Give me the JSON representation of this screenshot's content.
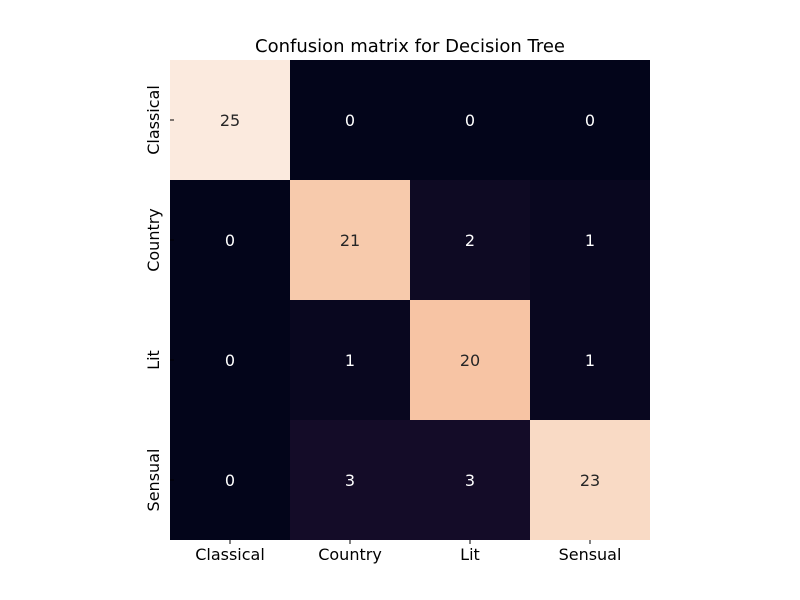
{
  "chart_data": {
    "type": "heatmap",
    "title": "Confusion matrix for Decision Tree",
    "xlabel": "",
    "ylabel": "",
    "x_categories": [
      "Classical",
      "Country",
      "Lit",
      "Sensual"
    ],
    "y_categories": [
      "Classical",
      "Country",
      "Lit",
      "Sensual"
    ],
    "values": [
      [
        25,
        0,
        0,
        0
      ],
      [
        0,
        21,
        2,
        1
      ],
      [
        0,
        1,
        20,
        1
      ],
      [
        0,
        3,
        3,
        23
      ]
    ],
    "value_range": [
      0,
      25
    ],
    "colormap": [
      "#03051a",
      "#1a0f2d",
      "#2e1838",
      "#f5a273",
      "#f6b28c",
      "#f7c9aa",
      "#fbeade"
    ],
    "text_colors": {
      "dark_cells": "#ffffff",
      "light_cells": "#262626"
    },
    "grid": false,
    "colorbar": false
  }
}
